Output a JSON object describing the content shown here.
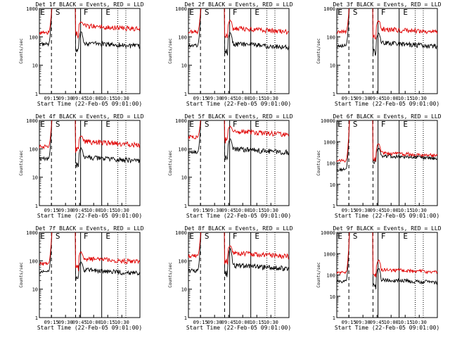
{
  "figure": {
    "xticks": [
      "09:15",
      "09:30",
      "09:45",
      "10:00",
      "10:15",
      "10:30"
    ],
    "yticks": [
      "1",
      "10",
      "100",
      "1000"
    ],
    "ylabel": "Counts/sec",
    "xlabel": "Start Time (22-Feb-05 09:01:00)"
  },
  "chart_data": [
    {
      "type": "line",
      "title": "Det 1f BLACK = Events, RED = LLD",
      "ymax": "1000",
      "markers": [
        "E",
        "S",
        "F",
        "E"
      ],
      "series": [
        {
          "name": "Events",
          "color": "#000000",
          "pre": 55,
          "post": 62,
          "spike": 140
        },
        {
          "name": "LLD",
          "color": "#e00000",
          "pre": 140,
          "post": 250,
          "spike": 330
        }
      ],
      "xlim": [
        0,
        100
      ],
      "ylim": [
        1,
        1000
      ],
      "xscale": "linear",
      "yscale": "log"
    },
    {
      "type": "line",
      "title": "Det 2f BLACK = Events, RED = LLD",
      "ymax": "1000",
      "markers": [
        "E",
        "S",
        "F",
        "E"
      ],
      "series": [
        {
          "name": "Events",
          "color": "#000000",
          "pre": 50,
          "post": 58,
          "spike": 140
        },
        {
          "name": "LLD",
          "color": "#e00000",
          "pre": 150,
          "post": 200,
          "spike": 380
        }
      ],
      "xlim": [
        0,
        100
      ],
      "ylim": [
        1,
        1000
      ],
      "xscale": "linear",
      "yscale": "log"
    },
    {
      "type": "line",
      "title": "Det 3f BLACK = Events, RED = LLD",
      "ymax": "1000",
      "markers": [
        "E",
        "S",
        "F",
        "E"
      ],
      "series": [
        {
          "name": "Events",
          "color": "#000000",
          "pre": 50,
          "post": 62,
          "spike": 130
        },
        {
          "name": "LLD",
          "color": "#e00000",
          "pre": 150,
          "post": 190,
          "spike": 370
        }
      ],
      "xlim": [
        0,
        100
      ],
      "ylim": [
        1,
        1000
      ],
      "xscale": "linear",
      "yscale": "log"
    },
    {
      "type": "line",
      "title": "Det 4f BLACK = Events, RED = LLD",
      "ymax": "1000",
      "markers": [
        "E",
        "S",
        "F",
        "E"
      ],
      "series": [
        {
          "name": "Events",
          "color": "#000000",
          "pre": 45,
          "post": 50,
          "spike": 110
        },
        {
          "name": "LLD",
          "color": "#e00000",
          "pre": 120,
          "post": 180,
          "spike": 280
        }
      ],
      "xlim": [
        0,
        100
      ],
      "ylim": [
        1,
        1000
      ],
      "xscale": "linear",
      "yscale": "log"
    },
    {
      "type": "line",
      "title": "Det 5f BLACK = Events, RED = LLD",
      "ymax": "1000",
      "markers": [
        "E",
        "S",
        "F",
        "E"
      ],
      "series": [
        {
          "name": "Events",
          "color": "#000000",
          "pre": 75,
          "post": 100,
          "spike": 220
        },
        {
          "name": "LLD",
          "color": "#e00000",
          "pre": 260,
          "post": 420,
          "spike": 600
        }
      ],
      "xlim": [
        0,
        100
      ],
      "ylim": [
        1,
        1000
      ],
      "xscale": "linear",
      "yscale": "log"
    },
    {
      "type": "line",
      "title": "Det 6f BLACK = Events, RED = LLD",
      "ymax": "10000",
      "markers": [
        "E",
        "S",
        "F",
        "E"
      ],
      "series": [
        {
          "name": "Events",
          "color": "#000000",
          "pre": 50,
          "post": 220,
          "spike": 500
        },
        {
          "name": "LLD",
          "color": "#e00000",
          "pre": 130,
          "post": 300,
          "spike": 800
        }
      ],
      "xlim": [
        0,
        100
      ],
      "ylim": [
        1,
        10000
      ],
      "xscale": "linear",
      "yscale": "log"
    },
    {
      "type": "line",
      "title": "Det 7f BLACK = Events, RED = LLD",
      "ymax": "1000",
      "markers": [
        "E",
        "S",
        "F",
        "E"
      ],
      "series": [
        {
          "name": "Events",
          "color": "#000000",
          "pre": 40,
          "post": 48,
          "spike": 90
        },
        {
          "name": "LLD",
          "color": "#e00000",
          "pre": 80,
          "post": 120,
          "spike": 200
        }
      ],
      "xlim": [
        0,
        100
      ],
      "ylim": [
        1,
        1000
      ],
      "xscale": "linear",
      "yscale": "log"
    },
    {
      "type": "line",
      "title": "Det 8f BLACK = Events, RED = LLD",
      "ymax": "1000",
      "markers": [
        "E",
        "S",
        "F",
        "E"
      ],
      "series": [
        {
          "name": "Events",
          "color": "#000000",
          "pre": 45,
          "post": 70,
          "spike": 250
        },
        {
          "name": "LLD",
          "color": "#e00000",
          "pre": 150,
          "post": 190,
          "spike": 350
        }
      ],
      "xlim": [
        0,
        100
      ],
      "ylim": [
        1,
        1000
      ],
      "xscale": "linear",
      "yscale": "log"
    },
    {
      "type": "line",
      "title": "Det 9f BLACK = Events, RED = LLD",
      "ymax": "10000",
      "markers": [
        "E",
        "S",
        "F",
        "E"
      ],
      "series": [
        {
          "name": "Events",
          "color": "#000000",
          "pre": 50,
          "post": 60,
          "spike": 200
        },
        {
          "name": "LLD",
          "color": "#e00000",
          "pre": 130,
          "post": 180,
          "spike": 500
        }
      ],
      "xlim": [
        0,
        100
      ],
      "ylim": [
        1,
        10000
      ],
      "xscale": "linear",
      "yscale": "log"
    }
  ]
}
